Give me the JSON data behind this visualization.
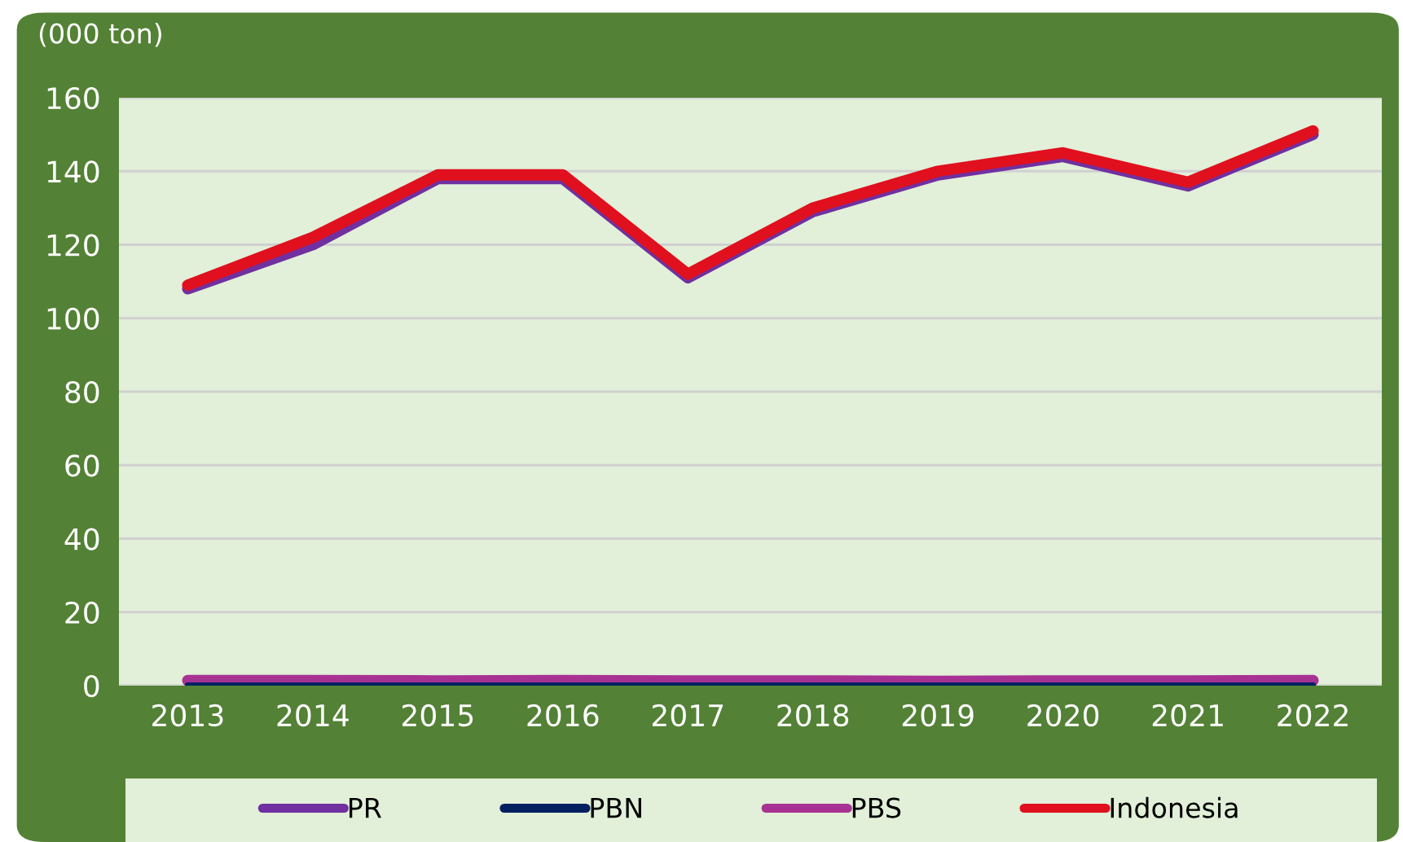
{
  "chart_data": {
    "type": "line",
    "ylabel": "(000 ton)",
    "categories": [
      "2013",
      "2014",
      "2015",
      "2016",
      "2017",
      "2018",
      "2019",
      "2020",
      "2021",
      "2022"
    ],
    "series": [
      {
        "name": "PR",
        "color": "#7030a0",
        "values": [
          108,
          120,
          138,
          138,
          111,
          129,
          139,
          144,
          136,
          150
        ]
      },
      {
        "name": "PBN",
        "color": "#002060",
        "values": [
          0.1,
          0.1,
          0.1,
          0.1,
          0.1,
          0.1,
          0.1,
          0.1,
          0.1,
          0.1
        ]
      },
      {
        "name": "PBS",
        "color": "#a83294",
        "values": [
          1.4,
          1.4,
          1.3,
          1.4,
          1.3,
          1.3,
          1.2,
          1.3,
          1.3,
          1.4
        ]
      },
      {
        "name": "Indonesia",
        "color": "#e0101e",
        "values": [
          109,
          122,
          139,
          139,
          112,
          130,
          140,
          145,
          137,
          151
        ]
      }
    ],
    "ylim": [
      0,
      160
    ],
    "yticks": [
      0,
      20,
      40,
      60,
      80,
      100,
      120,
      140,
      160
    ],
    "grid": "y",
    "legend": "bottom",
    "marker": "none",
    "line_style": "solid"
  }
}
